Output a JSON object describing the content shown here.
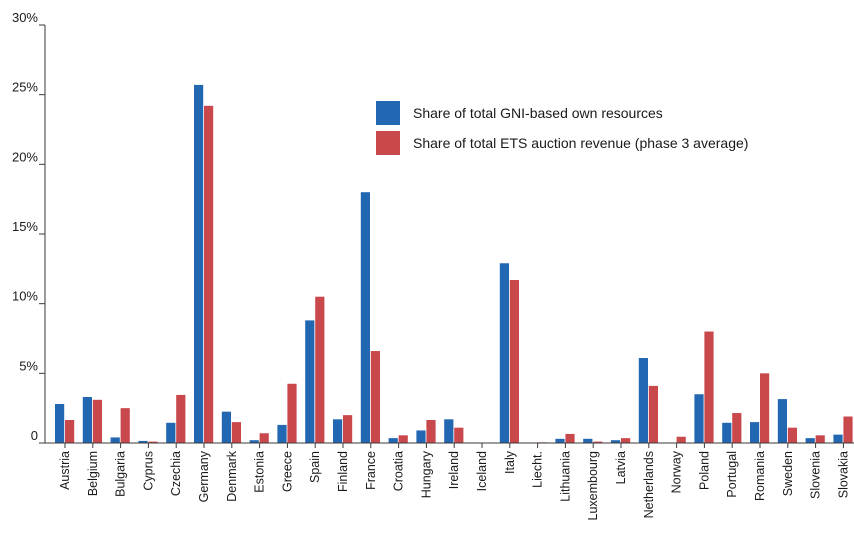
{
  "colors": {
    "series_a": "#2167b2",
    "series_b": "#c9484c",
    "axis": "#3a3a3a"
  },
  "chart_data": {
    "type": "bar",
    "title": "",
    "xlabel": "",
    "ylabel": "",
    "ylim": [
      0,
      30
    ],
    "y_ticks": [
      "0",
      "5%",
      "10%",
      "15%",
      "20%",
      "25%",
      "30%"
    ],
    "grid": false,
    "legend_position": "top-right",
    "categories": [
      "Austria",
      "Belgium",
      "Bulgaria",
      "Cyprus",
      "Czechia",
      "Germany",
      "Denmark",
      "Estonia",
      "Greece",
      "Spain",
      "Finland",
      "France",
      "Croatia",
      "Hungary",
      "Ireland",
      "Iceland",
      "Italy",
      "Liecht.",
      "Lithuania",
      "Luxembourg",
      "Latvia",
      "Netherlands",
      "Norway",
      "Poland",
      "Portugal",
      "Romania",
      "Sweden",
      "Slovenia",
      "Slovakia"
    ],
    "series": [
      {
        "name": "Share of total GNI-based own resources",
        "values": [
          2.8,
          3.3,
          0.4,
          0.15,
          1.45,
          25.7,
          2.25,
          0.2,
          1.3,
          8.8,
          1.7,
          18.0,
          0.35,
          0.9,
          1.7,
          0,
          12.9,
          0,
          0.3,
          0.3,
          0.2,
          6.1,
          0,
          3.5,
          1.45,
          1.5,
          3.15,
          0.35,
          0.6
        ]
      },
      {
        "name": "Share of total ETS auction revenue (phase 3 average)",
        "values": [
          1.65,
          3.1,
          2.5,
          0.1,
          3.45,
          24.2,
          1.5,
          0.7,
          4.25,
          10.5,
          2.0,
          6.6,
          0.55,
          1.65,
          1.1,
          0.03,
          11.7,
          0.05,
          0.65,
          0.1,
          0.35,
          4.1,
          0.45,
          8.0,
          2.15,
          5.0,
          1.1,
          0.55,
          1.9
        ]
      }
    ]
  }
}
